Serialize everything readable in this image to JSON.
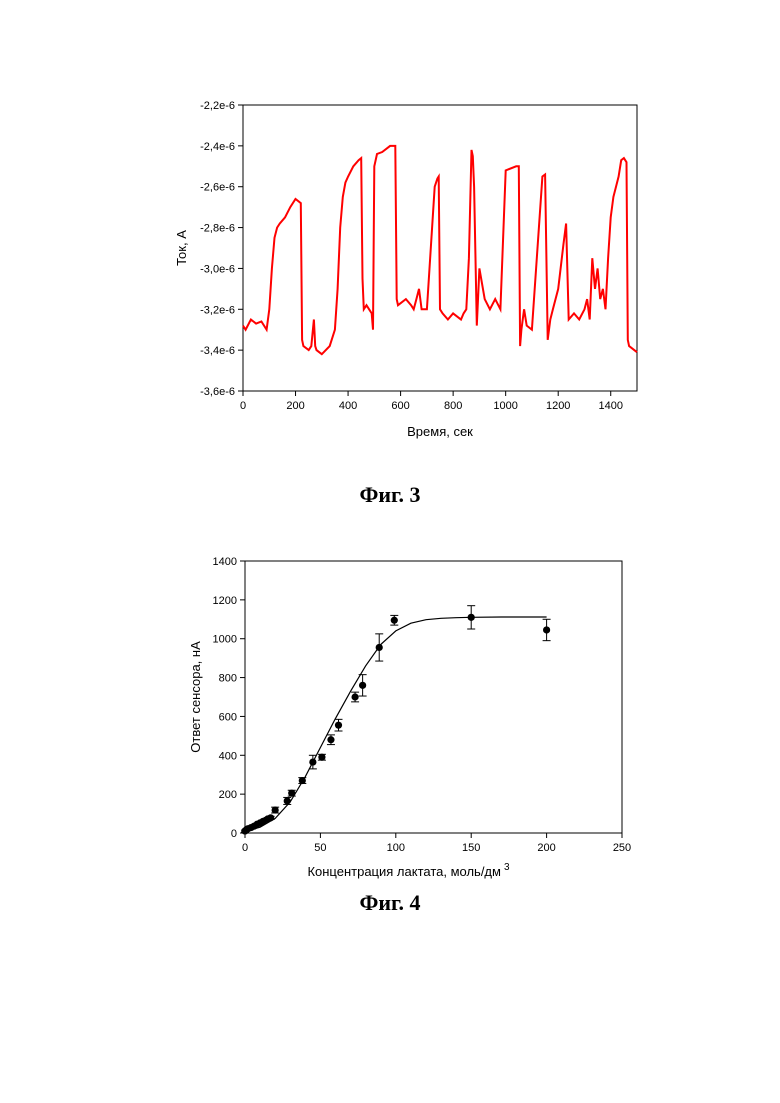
{
  "figures": {
    "fig3_caption": "Фиг. 3",
    "fig4_caption": "Фиг. 4"
  },
  "chart_data": [
    {
      "type": "line",
      "xlabel": "Время, сек",
      "ylabel": "Ток, А",
      "xlim": [
        0,
        1500
      ],
      "ylim": [
        -3.6e-06,
        -2.2e-06
      ],
      "x_ticks": [
        0,
        200,
        400,
        600,
        800,
        1000,
        1200,
        1400
      ],
      "x_tick_labels": [
        "0",
        "200",
        "400",
        "600",
        "800",
        "1000",
        "1200",
        "1400"
      ],
      "y_ticks": [
        -2.2e-06,
        -2.4e-06,
        -2.6e-06,
        -2.8e-06,
        -3e-06,
        -3.2e-06,
        -3.4e-06,
        -3.6e-06
      ],
      "y_tick_labels": [
        "-2,2e-6",
        "-2,4e-6",
        "-2,6e-6",
        "-2,8e-6",
        "-3,0e-6",
        "-3,2e-6",
        "-3,4e-6",
        "-3,6e-6"
      ],
      "color": "#ff0000",
      "grid": false,
      "series": [
        {
          "x": [
            0,
            10,
            30,
            50,
            70,
            90,
            100,
            110,
            120,
            130,
            140,
            160,
            180,
            200,
            220,
            225,
            230,
            250,
            260,
            270,
            275,
            280,
            300,
            330,
            350,
            360,
            370,
            380,
            390,
            400,
            420,
            440,
            450,
            455,
            460,
            470,
            480,
            490,
            495,
            500,
            510,
            530,
            560,
            580,
            585,
            590,
            600,
            620,
            640,
            650,
            660,
            670,
            680,
            700,
            730,
            740,
            745,
            750,
            760,
            780,
            800,
            830,
            840,
            850,
            860,
            870,
            875,
            880,
            890,
            900,
            920,
            940,
            960,
            980,
            1000,
            1040,
            1050,
            1055,
            1060,
            1070,
            1080,
            1100,
            1140,
            1150,
            1160,
            1170,
            1180,
            1200,
            1220,
            1230,
            1240,
            1260,
            1280,
            1300,
            1310,
            1320,
            1330,
            1340,
            1350,
            1360,
            1370,
            1380,
            1390,
            1400,
            1410,
            1420,
            1430,
            1440,
            1450,
            1460,
            1465,
            1470,
            1480,
            1500
          ],
          "y": [
            -3.28e-06,
            -3.3e-06,
            -3.25e-06,
            -3.27e-06,
            -3.26e-06,
            -3.3e-06,
            -3.2e-06,
            -3e-06,
            -2.85e-06,
            -2.8e-06,
            -2.78e-06,
            -2.75e-06,
            -2.7e-06,
            -2.66e-06,
            -2.68e-06,
            -3.35e-06,
            -3.38e-06,
            -3.4e-06,
            -3.38e-06,
            -3.25e-06,
            -3.38e-06,
            -3.4e-06,
            -3.42e-06,
            -3.38e-06,
            -3.3e-06,
            -3.1e-06,
            -2.8e-06,
            -2.65e-06,
            -2.58e-06,
            -2.55e-06,
            -2.5e-06,
            -2.47e-06,
            -2.46e-06,
            -3.05e-06,
            -3.2e-06,
            -3.18e-06,
            -3.2e-06,
            -3.22e-06,
            -3.3e-06,
            -2.5e-06,
            -2.44e-06,
            -2.43e-06,
            -2.4e-06,
            -2.4e-06,
            -3.15e-06,
            -3.18e-06,
            -3.17e-06,
            -3.15e-06,
            -3.18e-06,
            -3.2e-06,
            -3.15e-06,
            -3.1e-06,
            -3.2e-06,
            -3.2e-06,
            -2.6e-06,
            -2.56e-06,
            -2.55e-06,
            -3.2e-06,
            -3.22e-06,
            -3.25e-06,
            -3.22e-06,
            -3.25e-06,
            -3.22e-06,
            -3.2e-06,
            -2.95e-06,
            -2.42e-06,
            -2.45e-06,
            -2.6e-06,
            -3.28e-06,
            -3e-06,
            -3.15e-06,
            -3.2e-06,
            -3.15e-06,
            -3.2e-06,
            -2.52e-06,
            -2.5e-06,
            -2.5e-06,
            -3.38e-06,
            -3.3e-06,
            -3.2e-06,
            -3.28e-06,
            -3.3e-06,
            -2.55e-06,
            -2.54e-06,
            -3.35e-06,
            -3.25e-06,
            -3.2e-06,
            -3.1e-06,
            -2.88e-06,
            -2.78e-06,
            -3.25e-06,
            -3.22e-06,
            -3.25e-06,
            -3.2e-06,
            -3.15e-06,
            -3.25e-06,
            -2.95e-06,
            -3.1e-06,
            -3e-06,
            -3.15e-06,
            -3.1e-06,
            -3.2e-06,
            -2.95e-06,
            -2.75e-06,
            -2.65e-06,
            -2.6e-06,
            -2.55e-06,
            -2.47e-06,
            -2.46e-06,
            -2.48e-06,
            -3.35e-06,
            -3.38e-06,
            -3.39e-06,
            -3.41e-06
          ]
        }
      ]
    },
    {
      "type": "scatter",
      "xlabel": "Концентрация лактата, моль/дм",
      "xlabel_superscript": "3",
      "ylabel": "Ответ сенсора, нА",
      "xlim": [
        0,
        250
      ],
      "ylim": [
        0,
        1400
      ],
      "x_ticks": [
        0,
        50,
        100,
        150,
        200,
        250
      ],
      "y_ticks": [
        0,
        200,
        400,
        600,
        800,
        1000,
        1200,
        1400
      ],
      "grid": false,
      "points": {
        "x": [
          0,
          1,
          2,
          4,
          6,
          8,
          10,
          12,
          15,
          17,
          20,
          28,
          31,
          38,
          45,
          51,
          57,
          62,
          73,
          78,
          89,
          99,
          150,
          200
        ],
        "y": [
          10,
          18,
          22,
          28,
          35,
          45,
          52,
          60,
          72,
          78,
          118,
          165,
          205,
          270,
          365,
          390,
          480,
          555,
          700,
          760,
          955,
          1095,
          1110,
          1045
        ],
        "err": [
          5,
          5,
          5,
          5,
          5,
          5,
          5,
          5,
          8,
          8,
          15,
          18,
          15,
          15,
          35,
          15,
          25,
          30,
          25,
          55,
          70,
          25,
          60,
          55
        ]
      },
      "fit": {
        "x": [
          0,
          10,
          20,
          30,
          40,
          50,
          60,
          70,
          80,
          90,
          100,
          110,
          120,
          130,
          140,
          150,
          170,
          200
        ],
        "y": [
          8,
          30,
          75,
          160,
          290,
          440,
          590,
          730,
          860,
          970,
          1040,
          1080,
          1098,
          1105,
          1108,
          1110,
          1112,
          1112
        ]
      }
    }
  ]
}
